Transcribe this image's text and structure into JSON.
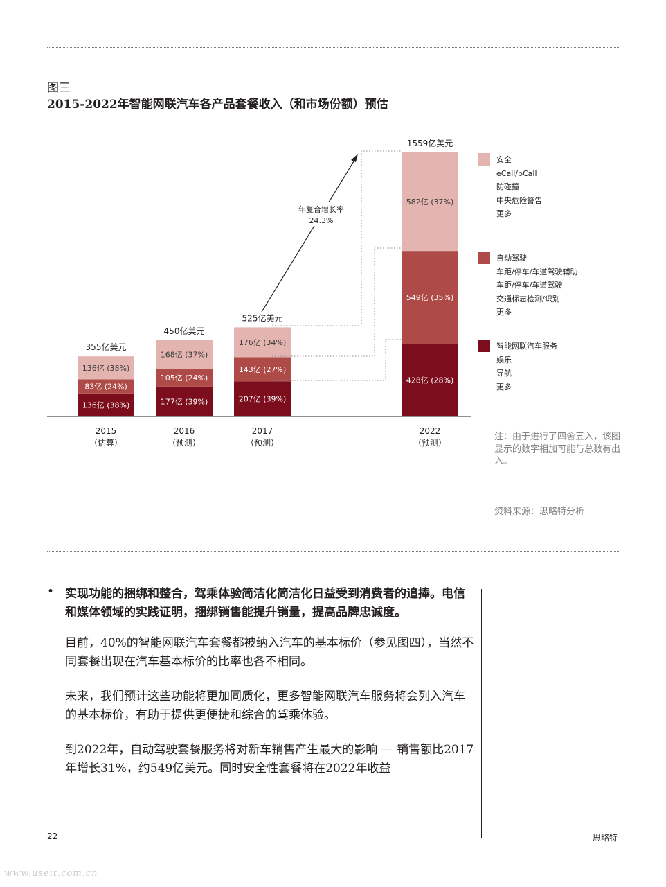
{
  "figure_label": "图三",
  "figure_title": "2015-2022年智能网联汽车各产品套餐收入（和市场份额）预估",
  "colors": {
    "safety": "#e3b4b0",
    "autodrive": "#ae4b48",
    "service": "#7b0d1c",
    "axis": "#231f20",
    "note": "#808285"
  },
  "chart_data": {
    "type": "bar",
    "stacked": true,
    "title": "2015-2022年智能网联汽车各产品套餐收入（和市场份额）预估",
    "categories": [
      "2015",
      "2016",
      "2017",
      "2022"
    ],
    "category_notes": [
      "（估算）",
      "（预测）",
      "（预测）",
      "（预测）"
    ],
    "totals": [
      355,
      450,
      525,
      1559
    ],
    "total_labels": [
      "355亿美元",
      "450亿美元",
      "525亿美元",
      "1559亿美元"
    ],
    "unit": "亿美元",
    "series": [
      {
        "name": "智能网联汽车服务",
        "color": "#7b0d1c",
        "values": [
          136,
          177,
          207,
          428
        ],
        "labels": [
          "136亿 (38%)",
          "177亿 (39%)",
          "207亿 (39%)",
          "428亿 (28%)"
        ]
      },
      {
        "name": "自动驾驶",
        "color": "#ae4b48",
        "values": [
          83,
          105,
          143,
          549
        ],
        "labels": [
          "83亿 (24%)",
          "105亿 (24%)",
          "143亿 (27%)",
          "549亿 (35%)"
        ]
      },
      {
        "name": "安全",
        "color": "#e3b4b0",
        "values": [
          136,
          168,
          176,
          582
        ],
        "labels": [
          "136亿 (38%)",
          "168亿 (37%)",
          "176亿 (34%)",
          "582亿 (37%)"
        ]
      }
    ],
    "annotation": {
      "line1": "年复合增长率",
      "line2": "24.3%"
    }
  },
  "legend": [
    {
      "color": "#e3b4b0",
      "items": [
        "安全",
        "eCall/bCall",
        "防碰撞",
        "中央危险警告",
        "更多"
      ]
    },
    {
      "color": "#ae4b48",
      "items": [
        "自动驾驶",
        "车距/停车/车道驾驶辅助",
        "车距/停车/车道驾驶",
        "交通标志检测/识别",
        "更多"
      ]
    },
    {
      "color": "#7b0d1c",
      "items": [
        "智能网联汽车服务",
        "娱乐",
        "导航",
        "更多"
      ]
    }
  ],
  "note": "注：由于进行了四舍五入，该图显示的数字相加可能与总数有出入。",
  "source": "资料来源：思略特分析",
  "bullet_symbol": "•",
  "bullet": "实现功能的捆绑和整合，驾乘体验简洁化简洁化日益受到消费者的追捧。电信和媒体领域的实践证明，捆绑销售能提升销量，提高品牌忠诚度。",
  "paragraphs": [
    "目前，40%的智能网联汽车套餐都被纳入汽车的基本标价（参见图四），当然不同套餐出现在汽车基本标价的比率也各不相同。",
    "未来，我们预计这些功能将更加同质化，更多智能网联汽车服务将会列入汽车的基本标价，有助于提供更便捷和综合的驾乘体验。",
    "到2022年，自动驾驶套餐服务将对新车销售产生最大的影响 — 销售额比2017年增长31%，约549亿美元。同时安全性套餐将在2022年收益"
  ],
  "page_number": "22",
  "brand": "思略特",
  "watermark": "www.useit.com.cn"
}
